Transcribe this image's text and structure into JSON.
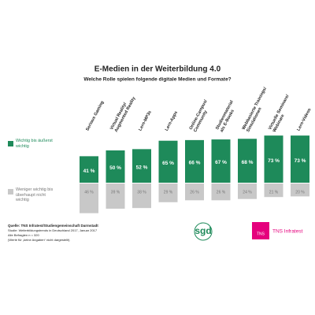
{
  "chart_data": {
    "type": "diverging-bar",
    "title": "E-Medien in der Weiterbildung 4.0",
    "subtitle": "Welche Rolle spielen folgende digitale Medien und Formate?",
    "categories": [
      [
        "Serious Gaming"
      ],
      [
        "Virtual Reality/",
        "Augmented Reality"
      ],
      [
        "Lern-MP3s"
      ],
      [
        "Lern-Apps"
      ],
      [
        "Online-Campus/",
        "Community"
      ],
      [
        "Studienmaterial",
        "als E-Books"
      ],
      [
        "Webbasierte Trainings/",
        "Simulationen"
      ],
      [
        "Virtuelle Seminare/",
        "Webinare"
      ],
      [
        "Lern-Videos"
      ]
    ],
    "series": [
      {
        "name": "Wichtig bis äußerst wichtig",
        "color": "#1e8a5a",
        "direction": "up",
        "values": [
          41,
          50,
          52,
          65,
          66,
          67,
          68,
          73,
          73
        ],
        "value_labels": [
          "41 %",
          "50 %",
          "52 %",
          "65 %",
          "66 %",
          "67 %",
          "68 %",
          "73 %",
          "73 %"
        ]
      },
      {
        "name": "Weniger wichtig bis überhaupt nicht wichtig",
        "color": "#c8c8c8",
        "direction": "down",
        "values": [
          46,
          39,
          38,
          29,
          26,
          26,
          24,
          21,
          20
        ],
        "value_labels": [
          "46 %",
          "39 %",
          "38 %",
          "29 %",
          "26 %",
          "26 %",
          "24 %",
          "21 %",
          "20 %"
        ]
      }
    ],
    "footnotes": [
      "Quelle: TNS Infratest/Studiengemeinschaft Darmstadt",
      "Studie: Weiterbildungstrends in Deutschland 2017, Januar 2017",
      "Alle Befragten n = 320",
      "(Werte für „keine Angaben“ nicht dargestellt)"
    ],
    "logos": {
      "sgd": "sgd",
      "tns_box": "TNS",
      "tns_text": "TNS Infratest"
    }
  }
}
